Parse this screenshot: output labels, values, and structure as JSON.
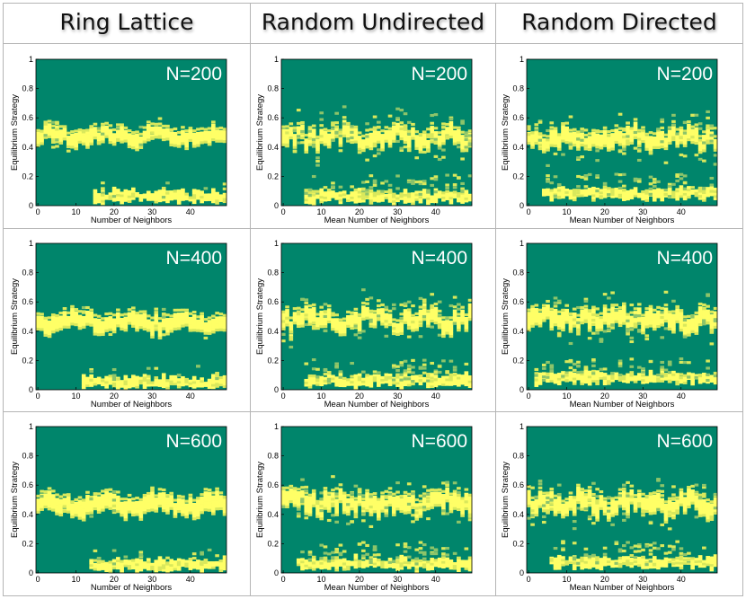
{
  "columns": [
    "Ring Lattice",
    "Random Undirected",
    "Random Directed"
  ],
  "chart_data": [
    {
      "type": "heatmap",
      "graph": "Ring Lattice",
      "N_label": "N=200",
      "xlabel": "Number of Neighbors",
      "ylabel": "Equilibrium Strategy",
      "xlim": [
        0,
        49
      ],
      "ylim": [
        0,
        1
      ],
      "xticks": [
        0,
        10,
        20,
        30,
        40
      ],
      "yticks": [
        0,
        0.2,
        0.4,
        0.6,
        0.8,
        1
      ],
      "upper_band_center": 0.47,
      "upper_band_width": 0.05,
      "lower_band_center": 0.06,
      "lower_band_start": 15,
      "noise": 0.2
    },
    {
      "type": "heatmap",
      "graph": "Random Undirected",
      "N_label": "N=200",
      "xlabel": "Mean Number of Neighbors",
      "ylabel": "Equilibrium Strategy",
      "xlim": [
        0,
        49
      ],
      "ylim": [
        0,
        1
      ],
      "xticks": [
        0,
        10,
        20,
        30,
        40
      ],
      "yticks": [
        0,
        0.2,
        0.4,
        0.6,
        0.8,
        1
      ],
      "upper_band_center": 0.47,
      "upper_band_width": 0.06,
      "lower_band_center": 0.06,
      "lower_band_start": 6,
      "noise": 0.6
    },
    {
      "type": "heatmap",
      "graph": "Random Directed",
      "N_label": "N=200",
      "xlabel": "Mean Number of Neighbors",
      "ylabel": "Equilibrium Strategy",
      "xlim": [
        0,
        49
      ],
      "ylim": [
        0,
        1
      ],
      "xticks": [
        0,
        10,
        20,
        30,
        40
      ],
      "yticks": [
        0,
        0.2,
        0.4,
        0.6,
        0.8,
        1
      ],
      "upper_band_center": 0.46,
      "upper_band_width": 0.06,
      "lower_band_center": 0.08,
      "lower_band_start": 4,
      "noise": 0.65
    },
    {
      "type": "heatmap",
      "graph": "Ring Lattice",
      "N_label": "N=400",
      "xlabel": "Number of Neighbors",
      "ylabel": "Equilibrium Strategy",
      "xlim": [
        0,
        49
      ],
      "ylim": [
        0,
        1
      ],
      "xticks": [
        0,
        10,
        20,
        30,
        40
      ],
      "yticks": [
        0,
        0.2,
        0.4,
        0.6,
        0.8,
        1
      ],
      "upper_band_center": 0.46,
      "upper_band_width": 0.06,
      "lower_band_center": 0.05,
      "lower_band_start": 12,
      "noise": 0.2
    },
    {
      "type": "heatmap",
      "graph": "Random Undirected",
      "N_label": "N=400",
      "xlabel": "Mean Number of Neighbors",
      "ylabel": "Equilibrium Strategy",
      "xlim": [
        0,
        49
      ],
      "ylim": [
        0,
        1
      ],
      "xticks": [
        0,
        10,
        20,
        30,
        40
      ],
      "yticks": [
        0,
        0.2,
        0.4,
        0.6,
        0.8,
        1
      ],
      "upper_band_center": 0.48,
      "upper_band_width": 0.06,
      "lower_band_center": 0.06,
      "lower_band_start": 6,
      "noise": 0.6
    },
    {
      "type": "heatmap",
      "graph": "Random Directed",
      "N_label": "N=400",
      "xlabel": "Mean Number of Neighbors",
      "ylabel": "Equilibrium Strategy",
      "xlim": [
        0,
        49
      ],
      "ylim": [
        0,
        1
      ],
      "xticks": [
        0,
        10,
        20,
        30,
        40
      ],
      "yticks": [
        0,
        0.2,
        0.4,
        0.6,
        0.8,
        1
      ],
      "upper_band_center": 0.48,
      "upper_band_width": 0.07,
      "lower_band_center": 0.08,
      "lower_band_start": 2,
      "noise": 0.65
    },
    {
      "type": "heatmap",
      "graph": "Ring Lattice",
      "N_label": "N=600",
      "xlabel": "Number of Neighbors",
      "ylabel": "Equilibrium Strategy",
      "xlim": [
        0,
        49
      ],
      "ylim": [
        0,
        1
      ],
      "xticks": [
        0,
        10,
        20,
        30,
        40
      ],
      "yticks": [
        0,
        0.2,
        0.4,
        0.6,
        0.8,
        1
      ],
      "upper_band_center": 0.46,
      "upper_band_width": 0.07,
      "lower_band_center": 0.05,
      "lower_band_start": 14,
      "noise": 0.2
    },
    {
      "type": "heatmap",
      "graph": "Random Undirected",
      "N_label": "N=600",
      "xlabel": "Mean Number of Neighbors",
      "ylabel": "Equilibrium Strategy",
      "xlim": [
        0,
        49
      ],
      "ylim": [
        0,
        1
      ],
      "xticks": [
        0,
        10,
        20,
        30,
        40
      ],
      "yticks": [
        0,
        0.2,
        0.4,
        0.6,
        0.8,
        1
      ],
      "upper_band_center": 0.48,
      "upper_band_width": 0.07,
      "lower_band_center": 0.06,
      "lower_band_start": 4,
      "noise": 0.6
    },
    {
      "type": "heatmap",
      "graph": "Random Directed",
      "N_label": "N=600",
      "xlabel": "Mean Number of Neighbors",
      "ylabel": "Equilibrium Strategy",
      "xlim": [
        0,
        49
      ],
      "ylim": [
        0,
        1
      ],
      "xticks": [
        0,
        10,
        20,
        30,
        40
      ],
      "yticks": [
        0,
        0.2,
        0.4,
        0.6,
        0.8,
        1
      ],
      "upper_band_center": 0.47,
      "upper_band_width": 0.07,
      "lower_band_center": 0.07,
      "lower_band_start": 6,
      "noise": 0.65
    }
  ],
  "colors": {
    "background": "#00856b",
    "band": "#ffff66",
    "band_mid": "#d9e85c",
    "band_dim": "#8cc46a"
  }
}
